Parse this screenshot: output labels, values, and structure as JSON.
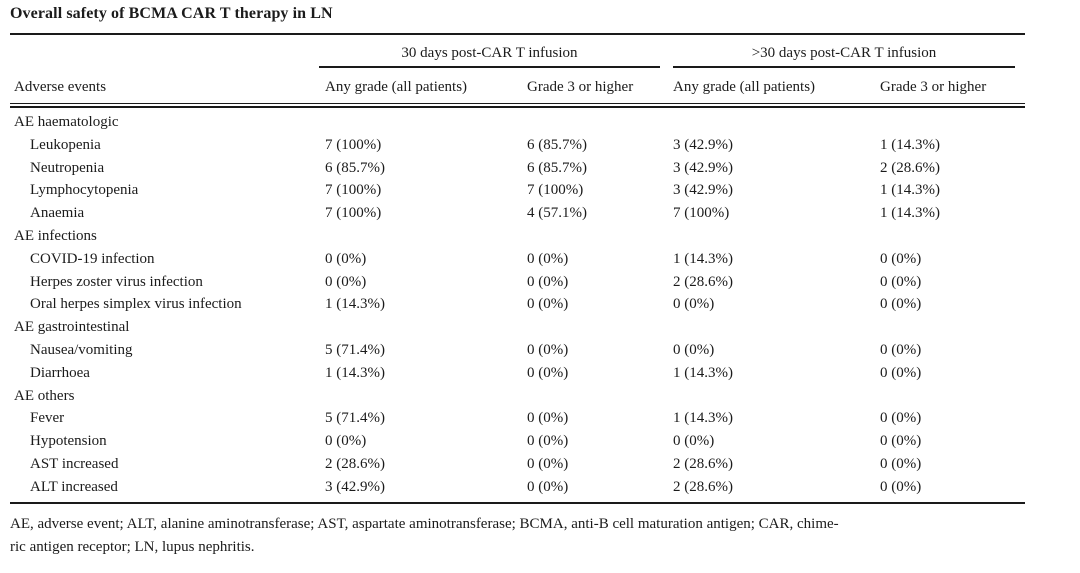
{
  "title": "Overall safety of BCMA CAR T therapy in LN",
  "table": {
    "row_header": "Adverse events",
    "column_groups": [
      {
        "label": "30 days post-CAR T infusion"
      },
      {
        "label": ">30 days post-CAR T infusion"
      }
    ],
    "sub_headers": [
      "Any grade (all patients)",
      "Grade 3 or higher",
      "Any grade (all patients)",
      "Grade 3 or higher"
    ],
    "sections": [
      {
        "label": "AE haematologic",
        "rows": [
          {
            "label": "Leukopenia",
            "values": [
              "7 (100%)",
              "6 (85.7%)",
              "3 (42.9%)",
              "1 (14.3%)"
            ]
          },
          {
            "label": "Neutropenia",
            "values": [
              "6 (85.7%)",
              "6 (85.7%)",
              "3 (42.9%)",
              "2 (28.6%)"
            ]
          },
          {
            "label": "Lymphocytopenia",
            "values": [
              "7 (100%)",
              "7 (100%)",
              "3 (42.9%)",
              "1 (14.3%)"
            ]
          },
          {
            "label": "Anaemia",
            "values": [
              "7 (100%)",
              "4 (57.1%)",
              "7 (100%)",
              "1 (14.3%)"
            ]
          }
        ]
      },
      {
        "label": "AE infections",
        "rows": [
          {
            "label": "COVID-19 infection",
            "values": [
              "0 (0%)",
              "0 (0%)",
              "1 (14.3%)",
              "0 (0%)"
            ]
          },
          {
            "label": "Herpes zoster virus infection",
            "values": [
              "0 (0%)",
              "0 (0%)",
              "2 (28.6%)",
              "0 (0%)"
            ]
          },
          {
            "label": "Oral herpes simplex virus infection",
            "values": [
              "1 (14.3%)",
              "0 (0%)",
              "0 (0%)",
              "0 (0%)"
            ]
          }
        ]
      },
      {
        "label": "AE gastrointestinal",
        "rows": [
          {
            "label": "Nausea/vomiting",
            "values": [
              "5 (71.4%)",
              "0 (0%)",
              "0 (0%)",
              "0 (0%)"
            ]
          },
          {
            "label": "Diarrhoea",
            "values": [
              "1 (14.3%)",
              "0 (0%)",
              "1 (14.3%)",
              "0 (0%)"
            ]
          }
        ]
      },
      {
        "label": "AE others",
        "rows": [
          {
            "label": "Fever",
            "values": [
              "5 (71.4%)",
              "0 (0%)",
              "1 (14.3%)",
              "0 (0%)"
            ]
          },
          {
            "label": "Hypotension",
            "values": [
              "0 (0%)",
              "0 (0%)",
              "0 (0%)",
              "0 (0%)"
            ]
          },
          {
            "label": "AST increased",
            "values": [
              "2 (28.6%)",
              "0 (0%)",
              "2 (28.6%)",
              "0 (0%)"
            ]
          },
          {
            "label": "ALT increased",
            "values": [
              "3 (42.9%)",
              "0 (0%)",
              "2 (28.6%)",
              "0 (0%)"
            ]
          }
        ]
      }
    ]
  },
  "footnote": {
    "lines": [
      "AE, adverse event; ALT, alanine aminotransferase; AST, aspartate aminotransferase; BCMA, anti-B cell maturation antigen; CAR, chime-",
      "ric antigen receptor; LN, lupus nephritis."
    ]
  }
}
